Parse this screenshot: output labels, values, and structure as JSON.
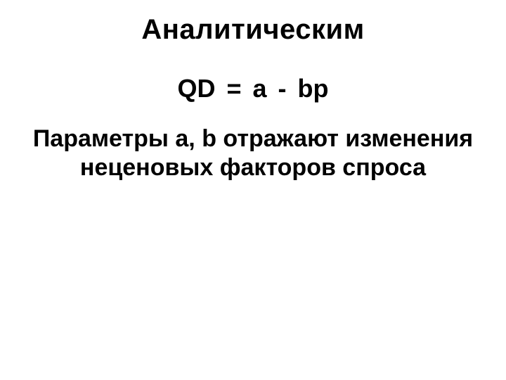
{
  "slide": {
    "title": "Аналитическим",
    "formula": "QD = a - bp",
    "body": "Параметры a, b отражают изменения  неценовых факторов спроса"
  },
  "style": {
    "background_color": "#ffffff",
    "text_color": "#000000",
    "title_fontsize": 40,
    "formula_fontsize": 36,
    "body_fontsize": 34,
    "font_weight": "bold",
    "font_family": "Arial"
  }
}
